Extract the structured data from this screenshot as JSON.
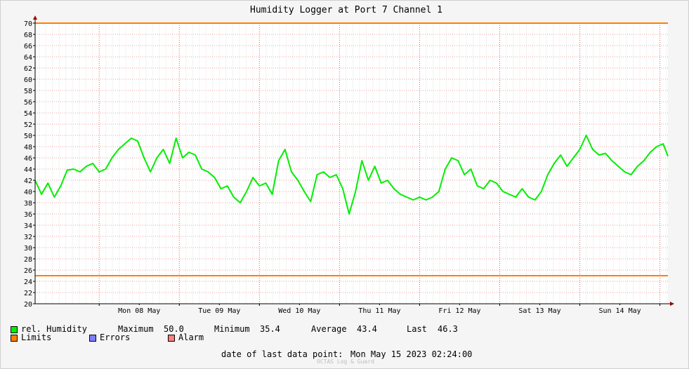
{
  "chart_data": {
    "type": "line",
    "title": "Humidity Logger at Port 7 Channel 1",
    "xlabel": "",
    "ylabel": "",
    "ylim": [
      20,
      70
    ],
    "y_ticks": [
      20,
      22,
      24,
      26,
      28,
      30,
      32,
      34,
      36,
      38,
      40,
      42,
      44,
      46,
      48,
      50,
      52,
      54,
      56,
      58,
      60,
      62,
      64,
      66,
      68,
      70
    ],
    "x_range_days": [
      7.2,
      15.1
    ],
    "x_tick_labels": [
      "Mon 08 May",
      "Tue 09 May",
      "Wed 10 May",
      "Thu 11 May",
      "Fri 12 May",
      "Sat 13 May",
      "Sun 14 May"
    ],
    "grid": true,
    "limits": [
      {
        "name": "upper",
        "value": 70
      },
      {
        "name": "lower",
        "value": 25
      }
    ],
    "series": [
      {
        "name": "rel. Humidity",
        "color": "#00ee00",
        "x_unit": "May (day of month)",
        "x": [
          7.2,
          7.28,
          7.36,
          7.44,
          7.52,
          7.6,
          7.68,
          7.76,
          7.84,
          7.92,
          8.0,
          8.08,
          8.16,
          8.24,
          8.32,
          8.4,
          8.48,
          8.56,
          8.64,
          8.72,
          8.8,
          8.88,
          8.96,
          9.04,
          9.12,
          9.2,
          9.28,
          9.36,
          9.44,
          9.52,
          9.6,
          9.68,
          9.76,
          9.84,
          9.92,
          10.0,
          10.08,
          10.16,
          10.24,
          10.32,
          10.4,
          10.48,
          10.56,
          10.64,
          10.72,
          10.8,
          10.88,
          10.96,
          11.04,
          11.12,
          11.2,
          11.28,
          11.36,
          11.44,
          11.52,
          11.6,
          11.68,
          11.76,
          11.84,
          11.92,
          12.0,
          12.08,
          12.16,
          12.24,
          12.32,
          12.4,
          12.48,
          12.56,
          12.64,
          12.72,
          12.8,
          12.88,
          12.96,
          13.04,
          13.12,
          13.2,
          13.28,
          13.36,
          13.44,
          13.52,
          13.6,
          13.68,
          13.76,
          13.84,
          13.92,
          14.0,
          14.08,
          14.16,
          14.24,
          14.32,
          14.4,
          14.48,
          14.56,
          14.64,
          14.72,
          14.8,
          14.88,
          14.96,
          15.04,
          15.1
        ],
        "y": [
          42.0,
          39.5,
          41.5,
          39.0,
          41.0,
          43.8,
          44.0,
          43.5,
          44.5,
          45.0,
          43.5,
          44.0,
          46.0,
          47.5,
          48.5,
          49.5,
          49.0,
          46.0,
          43.5,
          46.0,
          47.5,
          45.0,
          49.5,
          46.0,
          47.0,
          46.5,
          44.0,
          43.5,
          42.5,
          40.5,
          41.0,
          39.0,
          38.0,
          40.0,
          42.5,
          41.0,
          41.5,
          39.5,
          45.5,
          47.5,
          43.5,
          42.0,
          40.0,
          38.2,
          43.0,
          43.5,
          42.5,
          43.0,
          40.5,
          36.0,
          40.0,
          45.5,
          42.0,
          44.5,
          41.5,
          42.0,
          40.5,
          39.5,
          39.0,
          38.5,
          39.0,
          38.5,
          39.0,
          40.0,
          44.0,
          46.0,
          45.5,
          43.0,
          44.0,
          41.0,
          40.5,
          42.0,
          41.5,
          40.0,
          39.5,
          39.0,
          40.5,
          39.0,
          38.5,
          40.0,
          43.0,
          45.0,
          46.5,
          44.5,
          46.0,
          47.5,
          50.0,
          47.5,
          46.5,
          46.8,
          45.5,
          44.5,
          43.5,
          43.0,
          44.5,
          45.5,
          47.0,
          48.0,
          48.5,
          46.3
        ]
      }
    ],
    "stats": {
      "maximum": "50.0",
      "minimum": "35.4",
      "average": "43.4",
      "last": "46.3"
    }
  },
  "legend": {
    "series_label": "rel. Humidity",
    "maximum_label": "Maximum",
    "minimum_label": "Minimum",
    "average_label": "Average",
    "last_label": "Last",
    "limits_label": "Limits",
    "errors_label": "Errors",
    "alarm_label": "Alarm",
    "series_color": "#00ee00",
    "limits_color": "#ff7f00",
    "errors_color": "#8080ff",
    "alarm_color": "#ff8080"
  },
  "footer": {
    "last_point_label": "date of last data point:",
    "last_point_value": "Mon May 15 2023 02:24:00",
    "watermark": "OCTAS Log & Guard"
  }
}
